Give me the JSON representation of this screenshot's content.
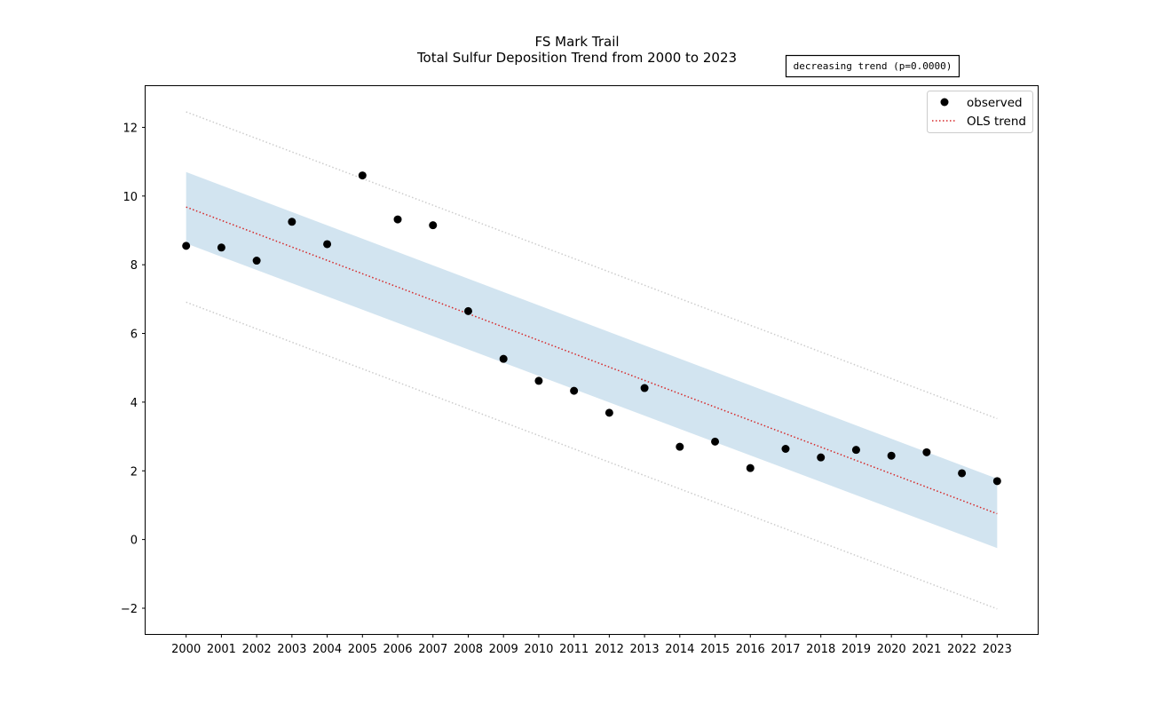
{
  "chart_data": {
    "type": "scatter",
    "title": "FS Mark Trail",
    "subtitle": "Total Sulfur Deposition Trend from 2000 to 2023",
    "annotation": "decreasing trend (p=0.0000)",
    "x": [
      2000,
      2001,
      2002,
      2003,
      2004,
      2005,
      2006,
      2007,
      2008,
      2009,
      2010,
      2011,
      2012,
      2013,
      2014,
      2015,
      2016,
      2017,
      2018,
      2019,
      2020,
      2021,
      2022,
      2023
    ],
    "xticklabels": [
      "2000",
      "2001",
      "2002",
      "2003",
      "2004",
      "2005",
      "2006",
      "2007",
      "2008",
      "2009",
      "2010",
      "2011",
      "2012",
      "2013",
      "2014",
      "2015",
      "2016",
      "2017",
      "2018",
      "2019",
      "2020",
      "2021",
      "2022",
      "2023"
    ],
    "yticks": [
      -2,
      0,
      2,
      4,
      6,
      8,
      10,
      12
    ],
    "yticklabels": [
      "−2",
      "0",
      "2",
      "4",
      "6",
      "8",
      "10",
      "12"
    ],
    "ylim": [
      -2.75,
      13.2
    ],
    "xlim": [
      1998.85,
      2024.15
    ],
    "series": [
      {
        "name": "observed",
        "kind": "scatter",
        "color": "#000000",
        "values": [
          8.55,
          8.5,
          8.12,
          9.25,
          8.6,
          10.6,
          9.32,
          9.15,
          6.65,
          5.26,
          4.62,
          4.33,
          3.69,
          4.41,
          2.7,
          2.85,
          2.08,
          2.64,
          2.39,
          2.61,
          2.44,
          2.54,
          1.93,
          1.7
        ]
      },
      {
        "name": "OLS trend",
        "kind": "line",
        "style": "dotted",
        "color": "#d62728",
        "start": 9.68,
        "end": 0.75
      }
    ],
    "confidence_band": {
      "color": "#1f77b4",
      "opacity": 0.2,
      "upper_start": 10.7,
      "upper_end": 1.77,
      "lower_start": 8.62,
      "lower_end": -0.25
    },
    "prediction_band": {
      "color": "#cccccc",
      "style": "dotted",
      "upper_start": 12.45,
      "upper_end": 3.52,
      "lower_start": 6.91,
      "lower_end": -2.02
    },
    "legend_location": "upper right",
    "grid": false
  }
}
